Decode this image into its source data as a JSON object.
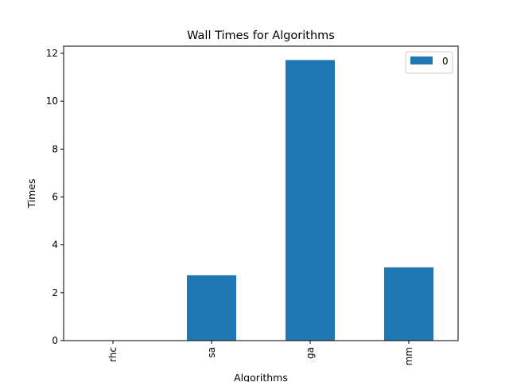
{
  "chart_data": {
    "type": "bar",
    "title": "Wall Times for Algorithms",
    "xlabel": "Algorithms",
    "ylabel": "Times",
    "categories": [
      "rhc",
      "sa",
      "ga",
      "mm"
    ],
    "series": [
      {
        "name": "0",
        "values": [
          0.0,
          2.73,
          11.72,
          3.06
        ],
        "color": "#1f77b4"
      }
    ],
    "ylim": [
      0,
      12.3
    ],
    "yticks": [
      0,
      2,
      4,
      6,
      8,
      10,
      12
    ],
    "grid": false,
    "legend": "top-right"
  }
}
